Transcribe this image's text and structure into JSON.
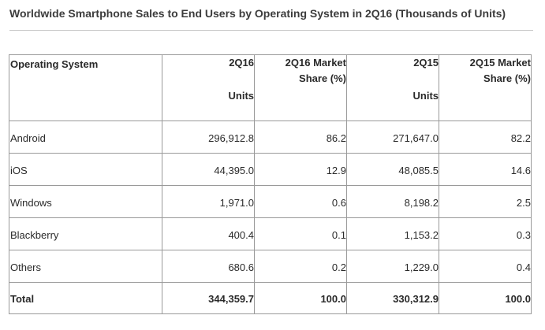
{
  "title": "Worldwide Smartphone Sales to End Users by Operating System in 2Q16 (Thousands of Units)",
  "table": {
    "headers": {
      "os": "Operating System",
      "q16": "2Q16",
      "q16_units": "Units",
      "q16_share_1": "2Q16 Market",
      "q16_share_2": "Share (%)",
      "q15": "2Q15",
      "q15_units": "Units",
      "q15_share_1": "2Q15 Market",
      "q15_share_2": "Share (%)"
    },
    "rows": [
      {
        "os": "Android",
        "q16": "296,912.8",
        "q16_share": "86.2",
        "q15": "271,647.0",
        "q15_share": "82.2"
      },
      {
        "os": "iOS",
        "q16": "44,395.0",
        "q16_share": "12.9",
        "q15": "48,085.5",
        "q15_share": "14.6"
      },
      {
        "os": "Windows",
        "q16": "1,971.0",
        "q16_share": "0.6",
        "q15": "8,198.2",
        "q15_share": "2.5"
      },
      {
        "os": "Blackberry",
        "q16": "400.4",
        "q16_share": "0.1",
        "q15": "1,153.2",
        "q15_share": "0.3"
      },
      {
        "os": "Others",
        "q16": "680.6",
        "q16_share": "0.2",
        "q15": "1,229.0",
        "q15_share": "0.4"
      }
    ],
    "total": {
      "os": "Total",
      "q16": "344,359.7",
      "q16_share": "100.0",
      "q15": "330,312.9",
      "q15_share": "100.0"
    }
  }
}
